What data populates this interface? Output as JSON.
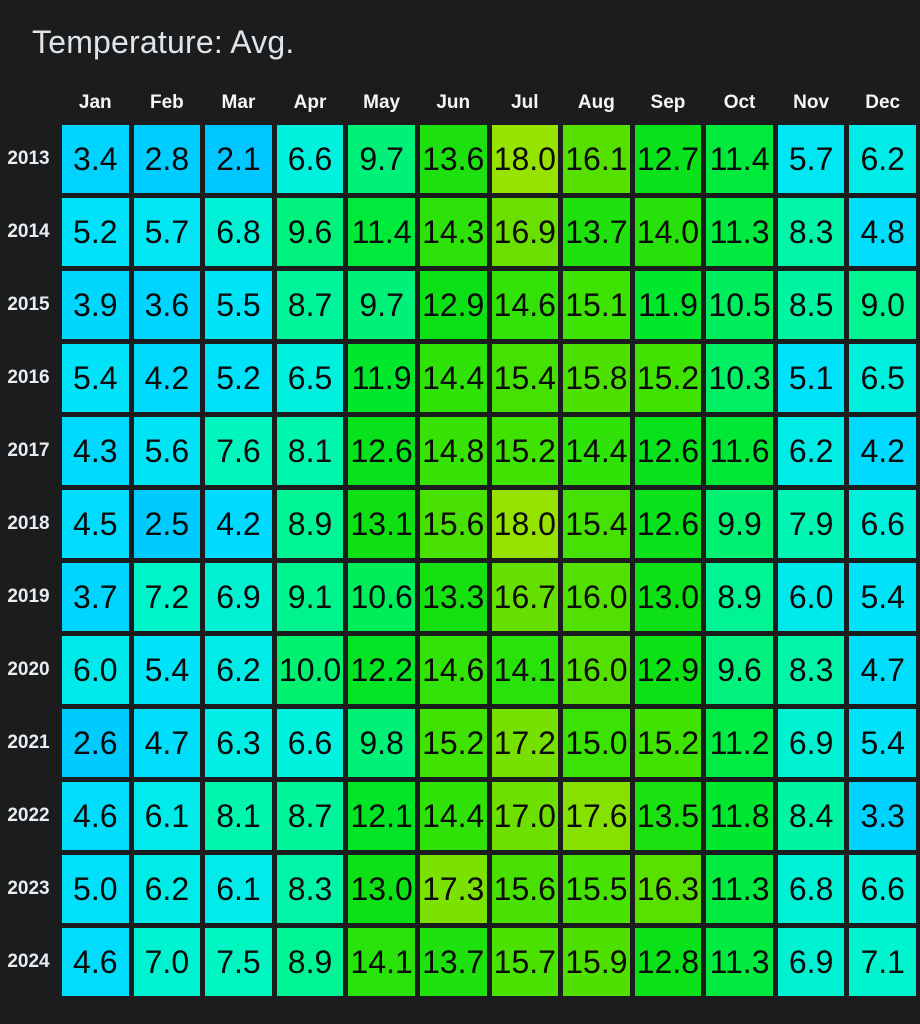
{
  "page": {
    "title": "Temperature: Avg."
  },
  "colors": {
    "background": "#1A1C1E",
    "title_text": "#E1E4E6",
    "column_header_text": "#F3F5F6",
    "row_label_text": "#EAEDEF",
    "cell_text": "#0A0A0A"
  },
  "chart_data": {
    "type": "heatmap",
    "title": "Temperature: Avg.",
    "columns": [
      "Jan",
      "Feb",
      "Mar",
      "Apr",
      "May",
      "Jun",
      "Jul",
      "Aug",
      "Sep",
      "Oct",
      "Nov",
      "Dec"
    ],
    "rows": [
      "2013",
      "2014",
      "2015",
      "2016",
      "2017",
      "2018",
      "2019",
      "2020",
      "2021",
      "2022",
      "2023",
      "2024"
    ],
    "values": [
      [
        3.4,
        2.8,
        2.1,
        6.6,
        9.7,
        13.6,
        18.0,
        16.1,
        12.7,
        11.4,
        5.7,
        6.2
      ],
      [
        5.2,
        5.7,
        6.8,
        9.6,
        11.4,
        14.3,
        16.9,
        13.7,
        14.0,
        11.3,
        8.3,
        4.8
      ],
      [
        3.9,
        3.6,
        5.5,
        8.7,
        9.7,
        12.9,
        14.6,
        15.1,
        11.9,
        10.5,
        8.5,
        9.0
      ],
      [
        5.4,
        4.2,
        5.2,
        6.5,
        11.9,
        14.4,
        15.4,
        15.8,
        15.2,
        10.3,
        5.1,
        6.5
      ],
      [
        4.3,
        5.6,
        7.6,
        8.1,
        12.6,
        14.8,
        15.2,
        14.4,
        12.6,
        11.6,
        6.2,
        4.2
      ],
      [
        4.5,
        2.5,
        4.2,
        8.9,
        13.1,
        15.6,
        18.0,
        15.4,
        12.6,
        9.9,
        7.9,
        6.6
      ],
      [
        3.7,
        7.2,
        6.9,
        9.1,
        10.6,
        13.3,
        16.7,
        16.0,
        13.0,
        8.9,
        6.0,
        5.4
      ],
      [
        6.0,
        5.4,
        6.2,
        10.0,
        12.2,
        14.6,
        14.1,
        16.0,
        12.9,
        9.6,
        8.3,
        4.7
      ],
      [
        2.6,
        4.7,
        6.3,
        6.6,
        9.8,
        15.2,
        17.2,
        15.0,
        15.2,
        11.2,
        6.9,
        5.4
      ],
      [
        4.6,
        6.1,
        8.1,
        8.7,
        12.1,
        14.4,
        17.0,
        17.6,
        13.5,
        11.8,
        8.4,
        3.3
      ],
      [
        5.0,
        6.2,
        6.1,
        8.3,
        13.0,
        17.3,
        15.6,
        15.5,
        16.3,
        11.3,
        6.8,
        6.6
      ],
      [
        4.6,
        7.0,
        7.5,
        8.9,
        14.1,
        13.7,
        15.7,
        15.9,
        12.8,
        11.3,
        6.9,
        7.1
      ]
    ],
    "value_decimals": 1,
    "value_range_shown": [
      2.1,
      18.0
    ],
    "legend": "none",
    "colormap_stops": [
      [
        2.0,
        "#00C6FF"
      ],
      [
        4.0,
        "#00D8FF"
      ],
      [
        5.5,
        "#00E4F8"
      ],
      [
        6.5,
        "#00F0E0"
      ],
      [
        7.5,
        "#00F6C0"
      ],
      [
        9.0,
        "#00F490"
      ],
      [
        10.0,
        "#00F070"
      ],
      [
        11.0,
        "#00EC4A"
      ],
      [
        12.0,
        "#00E628"
      ],
      [
        13.0,
        "#0DE014"
      ],
      [
        14.0,
        "#26E20A"
      ],
      [
        15.0,
        "#3CE203"
      ],
      [
        16.0,
        "#52E000"
      ],
      [
        17.0,
        "#6EE000"
      ],
      [
        18.0,
        "#96E200"
      ]
    ]
  }
}
